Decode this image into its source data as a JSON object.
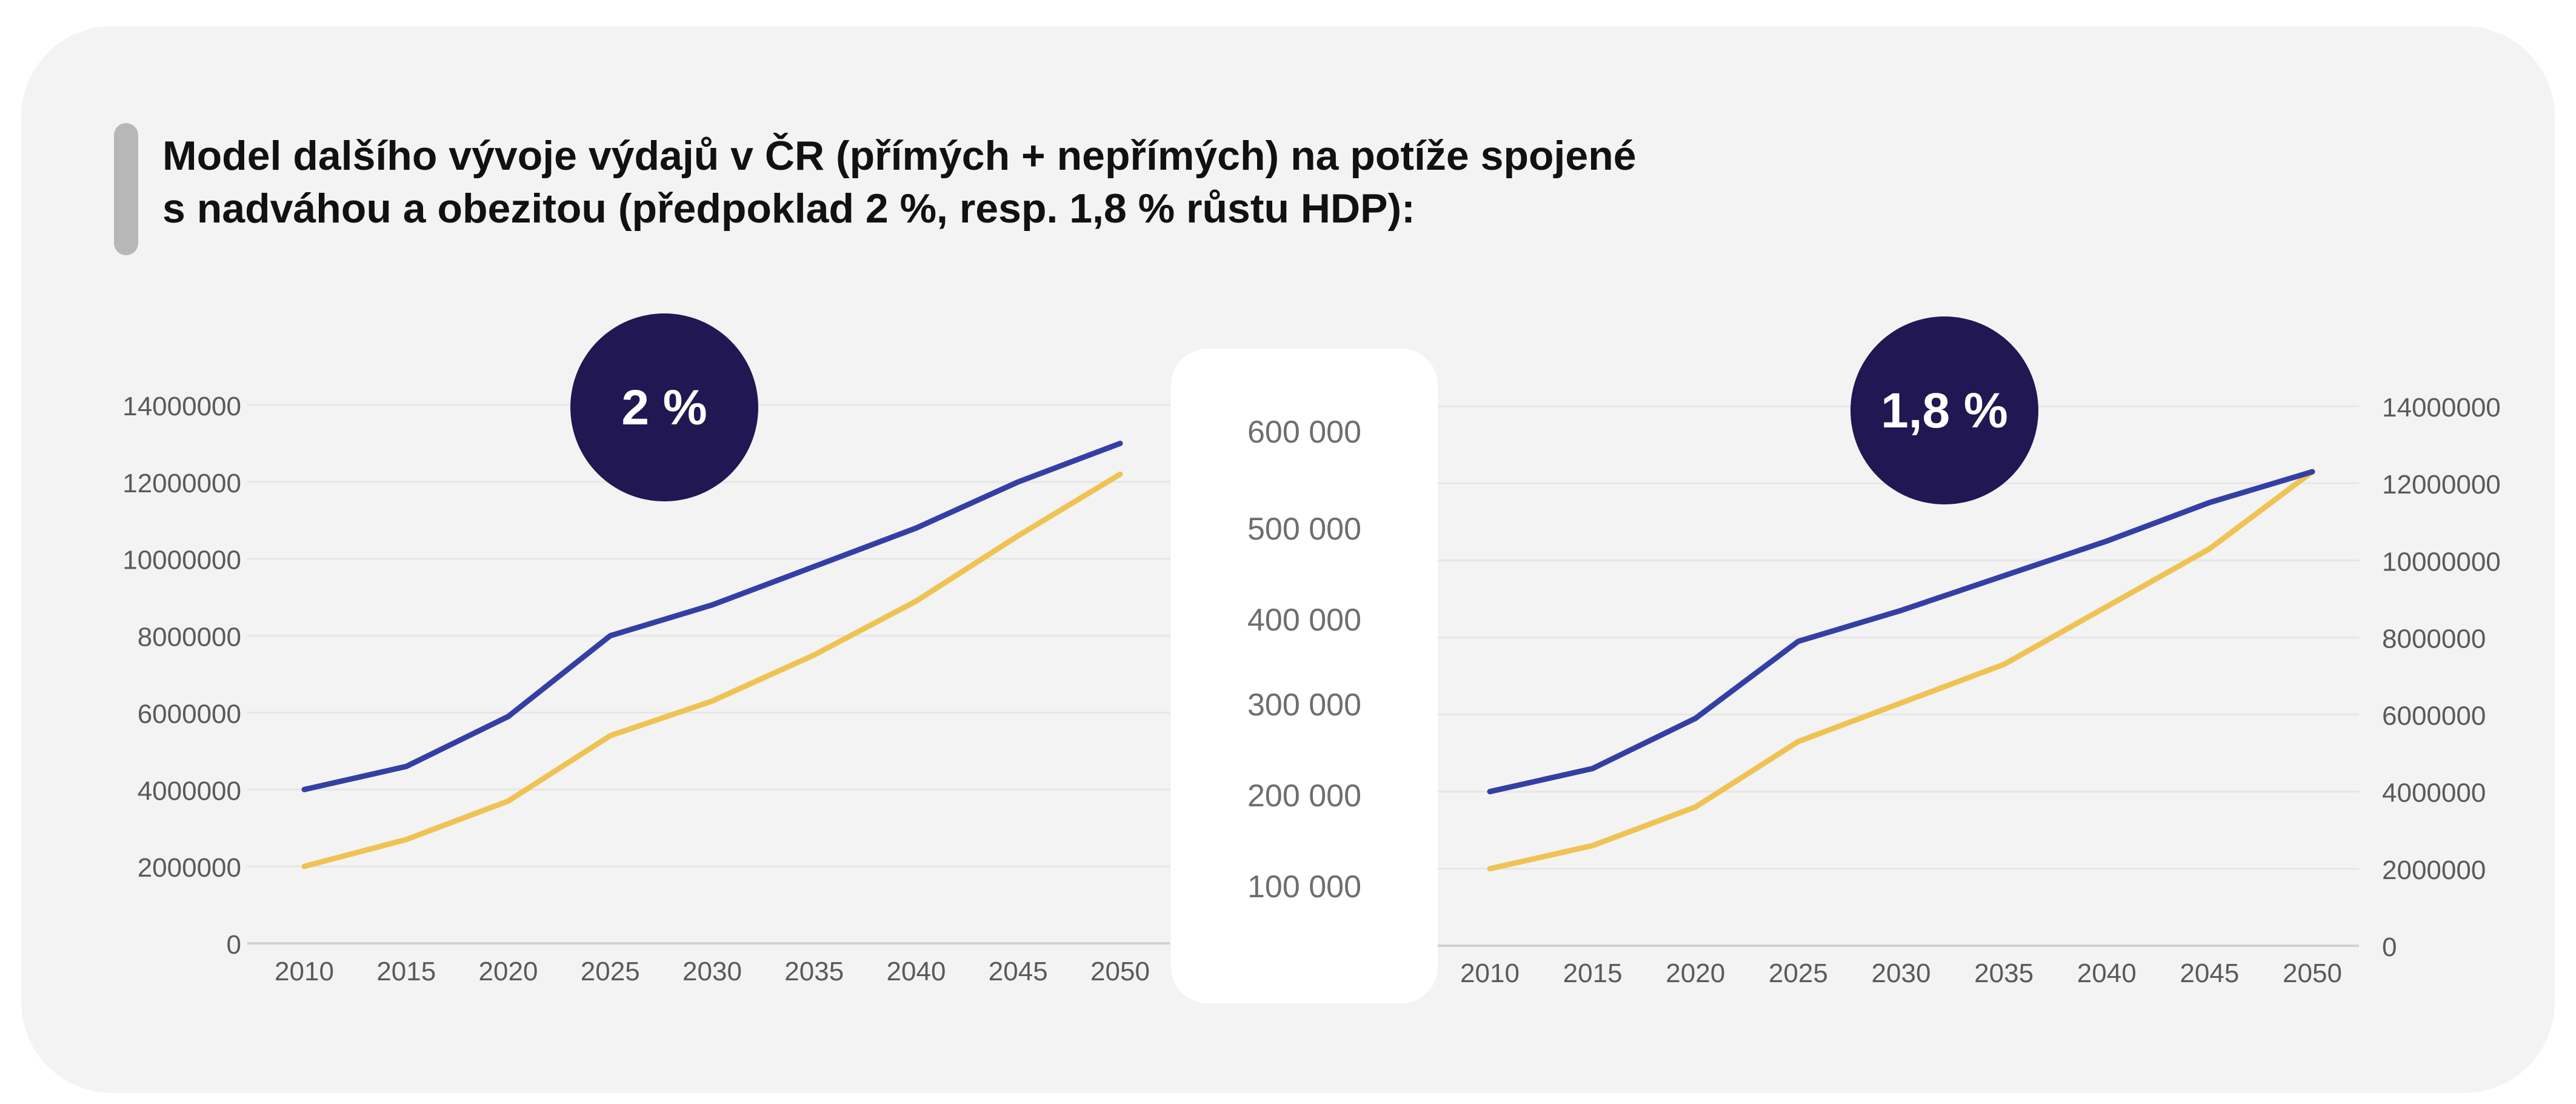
{
  "title": {
    "line1": "Model dalšího vývoje výdajů v ČR (přímých + nepřímých) na potíže spojené",
    "line2": "s nadváhou a obezitou (předpoklad 2 %, resp. 1,8 % růstu HDP):"
  },
  "colors": {
    "card": "#f3f3f3",
    "series_upper": "#343fa5",
    "series_lower": "#efc353",
    "badge": "#211752",
    "badge_text": "#ffffff",
    "axis_text": "#5a5a5a",
    "center_text": "#6e6e6e"
  },
  "center_scale": {
    "labels": [
      "600 000",
      "500 000",
      "400 000",
      "300 000",
      "200 000",
      "100 000"
    ]
  },
  "chart_data": [
    {
      "type": "line",
      "badge": "2 %",
      "y_axis_side": "left",
      "x": [
        2010,
        2015,
        2020,
        2025,
        2030,
        2035,
        2040,
        2045,
        2050
      ],
      "ylim": [
        0,
        14000000
      ],
      "yticks": [
        0,
        2000000,
        4000000,
        6000000,
        8000000,
        10000000,
        12000000,
        14000000
      ],
      "grid": true,
      "series": [
        {
          "color": "#343fa5",
          "values": [
            4000000,
            4600000,
            5900000,
            8000000,
            8800000,
            9800000,
            10800000,
            12000000,
            13000000
          ]
        },
        {
          "color": "#efc353",
          "values": [
            2000000,
            2700000,
            3700000,
            5400000,
            6300000,
            7500000,
            8900000,
            10600000,
            12200000
          ]
        }
      ]
    },
    {
      "type": "line",
      "badge": "1,8 %",
      "y_axis_side": "right",
      "x": [
        2010,
        2015,
        2020,
        2025,
        2030,
        2035,
        2040,
        2045,
        2050
      ],
      "ylim": [
        0,
        14000000
      ],
      "yticks": [
        0,
        2000000,
        4000000,
        6000000,
        8000000,
        10000000,
        12000000,
        14000000
      ],
      "grid": true,
      "series": [
        {
          "color": "#343fa5",
          "values": [
            4000000,
            4600000,
            5900000,
            7900000,
            8700000,
            9600000,
            10500000,
            11500000,
            12300000
          ]
        },
        {
          "color": "#efc353",
          "values": [
            2000000,
            2600000,
            3600000,
            5300000,
            6300000,
            7300000,
            8800000,
            10300000,
            12300000
          ]
        }
      ]
    }
  ]
}
